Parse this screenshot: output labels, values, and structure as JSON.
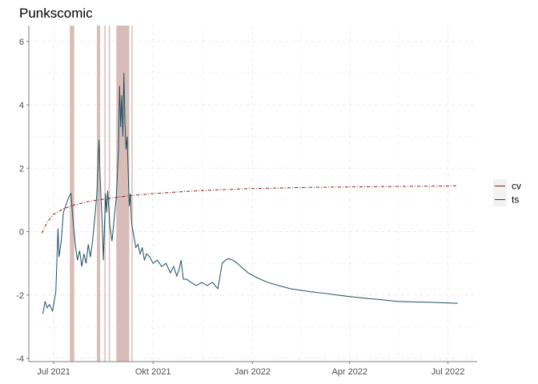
{
  "chart_data": {
    "type": "line",
    "title": "Punkscomic",
    "xlabel": "",
    "ylabel": "",
    "x_axis": {
      "type": "date",
      "range": [
        "2021-06-08",
        "2022-07-28"
      ]
    },
    "y_axis": {
      "range": [
        -4.1,
        6.5
      ]
    },
    "x_ticks": [
      {
        "date": "2021-07-01",
        "label": "Jul 2021"
      },
      {
        "date": "2021-10-01",
        "label": "Okt 2021"
      },
      {
        "date": "2022-01-01",
        "label": "Jan 2022"
      },
      {
        "date": "2022-04-01",
        "label": "Apr 2022"
      },
      {
        "date": "2022-07-01",
        "label": "Jul 2022"
      }
    ],
    "y_ticks": [
      -4,
      -2,
      0,
      2,
      4,
      6
    ],
    "grid": true,
    "legend_position": "right",
    "shaded_periods": [
      [
        "2021-07-16",
        "2021-07-20"
      ],
      [
        "2021-08-10",
        "2021-08-13"
      ],
      [
        "2021-08-17",
        "2021-08-18"
      ],
      [
        "2021-08-21",
        "2021-08-22"
      ],
      [
        "2021-08-28",
        "2021-09-09"
      ],
      [
        "2021-09-11",
        "2021-09-12"
      ]
    ],
    "shade_color": "#d8bcb7",
    "series": [
      {
        "name": "cv",
        "color": "#8b1a0b",
        "dash": "dashdot",
        "points": [
          [
            "2021-06-20",
            -0.05
          ],
          [
            "2021-06-25",
            0.3
          ],
          [
            "2021-07-01",
            0.55
          ],
          [
            "2021-07-10",
            0.72
          ],
          [
            "2021-07-20",
            0.84
          ],
          [
            "2021-08-01",
            0.94
          ],
          [
            "2021-08-15",
            1.02
          ],
          [
            "2021-09-01",
            1.1
          ],
          [
            "2021-09-15",
            1.15
          ],
          [
            "2021-10-01",
            1.2
          ],
          [
            "2021-11-01",
            1.27
          ],
          [
            "2021-12-01",
            1.32
          ],
          [
            "2022-01-01",
            1.36
          ],
          [
            "2022-02-01",
            1.38
          ],
          [
            "2022-03-01",
            1.4
          ],
          [
            "2022-04-01",
            1.41
          ],
          [
            "2022-05-01",
            1.42
          ],
          [
            "2022-06-01",
            1.43
          ],
          [
            "2022-07-01",
            1.44
          ],
          [
            "2022-07-10",
            1.45
          ]
        ]
      },
      {
        "name": "ts",
        "color": "#1f4e5f",
        "dash": "solid",
        "points": [
          [
            "2021-06-21",
            -2.6
          ],
          [
            "2021-06-23",
            -2.2
          ],
          [
            "2021-06-25",
            -2.4
          ],
          [
            "2021-06-27",
            -2.3
          ],
          [
            "2021-06-30",
            -2.5
          ],
          [
            "2021-07-03",
            -1.9
          ],
          [
            "2021-07-05",
            0.1
          ],
          [
            "2021-07-06",
            -0.8
          ],
          [
            "2021-07-08",
            -0.3
          ],
          [
            "2021-07-10",
            0.6
          ],
          [
            "2021-07-13",
            0.9
          ],
          [
            "2021-07-15",
            1.1
          ],
          [
            "2021-07-17",
            1.2
          ],
          [
            "2021-07-19",
            0.3
          ],
          [
            "2021-07-21",
            -0.4
          ],
          [
            "2021-07-23",
            -0.9
          ],
          [
            "2021-07-25",
            -0.6
          ],
          [
            "2021-07-27",
            -1.1
          ],
          [
            "2021-07-29",
            -0.7
          ],
          [
            "2021-07-31",
            -1.0
          ],
          [
            "2021-08-02",
            -0.4
          ],
          [
            "2021-08-04",
            -0.8
          ],
          [
            "2021-08-06",
            -0.3
          ],
          [
            "2021-08-08",
            0.4
          ],
          [
            "2021-08-10",
            1.2
          ],
          [
            "2021-08-11",
            2.1
          ],
          [
            "2021-08-12",
            2.9
          ],
          [
            "2021-08-13",
            1.7
          ],
          [
            "2021-08-14",
            0.9
          ],
          [
            "2021-08-15",
            0.2
          ],
          [
            "2021-08-16",
            -0.9
          ],
          [
            "2021-08-18",
            1.2
          ],
          [
            "2021-08-19",
            0.6
          ],
          [
            "2021-08-20",
            1.3
          ],
          [
            "2021-08-22",
            0.2
          ],
          [
            "2021-08-24",
            -0.3
          ],
          [
            "2021-08-26",
            0.4
          ],
          [
            "2021-08-28",
            1.1
          ],
          [
            "2021-08-30",
            2.6
          ],
          [
            "2021-08-31",
            4.6
          ],
          [
            "2021-09-01",
            3.3
          ],
          [
            "2021-09-02",
            4.3
          ],
          [
            "2021-09-03",
            3.0
          ],
          [
            "2021-09-04",
            5.0
          ],
          [
            "2021-09-05",
            3.4
          ],
          [
            "2021-09-06",
            2.6
          ],
          [
            "2021-09-07",
            3.0
          ],
          [
            "2021-09-08",
            1.9
          ],
          [
            "2021-09-09",
            0.8
          ],
          [
            "2021-09-10",
            1.2
          ],
          [
            "2021-09-11",
            0.3
          ],
          [
            "2021-09-13",
            -0.1
          ],
          [
            "2021-09-15",
            -0.5
          ],
          [
            "2021-09-17",
            -0.4
          ],
          [
            "2021-09-19",
            -0.7
          ],
          [
            "2021-09-21",
            -0.5
          ],
          [
            "2021-09-23",
            -0.9
          ],
          [
            "2021-09-25",
            -0.7
          ],
          [
            "2021-09-28",
            -0.8
          ],
          [
            "2021-10-01",
            -1.0
          ],
          [
            "2021-10-05",
            -0.9
          ],
          [
            "2021-10-09",
            -1.1
          ],
          [
            "2021-10-13",
            -1.0
          ],
          [
            "2021-10-17",
            -1.3
          ],
          [
            "2021-10-20",
            -1.1
          ],
          [
            "2021-10-23",
            -1.4
          ],
          [
            "2021-10-25",
            -1.2
          ],
          [
            "2021-10-27",
            -0.9
          ],
          [
            "2021-10-29",
            -1.5
          ],
          [
            "2021-11-01",
            -1.5
          ],
          [
            "2021-11-05",
            -1.6
          ],
          [
            "2021-11-10",
            -1.7
          ],
          [
            "2021-11-15",
            -1.6
          ],
          [
            "2021-11-20",
            -1.7
          ],
          [
            "2021-11-25",
            -1.6
          ],
          [
            "2021-11-30",
            -1.8
          ],
          [
            "2021-12-02",
            -1.4
          ],
          [
            "2021-12-04",
            -1.0
          ],
          [
            "2021-12-07",
            -0.9
          ],
          [
            "2021-12-10",
            -0.85
          ],
          [
            "2021-12-14",
            -0.9
          ],
          [
            "2021-12-18",
            -1.0
          ],
          [
            "2021-12-23",
            -1.15
          ],
          [
            "2021-12-28",
            -1.3
          ],
          [
            "2022-01-05",
            -1.45
          ],
          [
            "2022-01-15",
            -1.6
          ],
          [
            "2022-01-25",
            -1.7
          ],
          [
            "2022-02-05",
            -1.8
          ],
          [
            "2022-02-15",
            -1.85
          ],
          [
            "2022-02-25",
            -1.9
          ],
          [
            "2022-03-10",
            -1.95
          ],
          [
            "2022-03-20",
            -2.0
          ],
          [
            "2022-04-01",
            -2.05
          ],
          [
            "2022-04-15",
            -2.1
          ],
          [
            "2022-05-01",
            -2.15
          ],
          [
            "2022-05-15",
            -2.2
          ],
          [
            "2022-06-01",
            -2.22
          ],
          [
            "2022-06-15",
            -2.23
          ],
          [
            "2022-07-01",
            -2.25
          ],
          [
            "2022-07-10",
            -2.26
          ]
        ]
      }
    ]
  }
}
